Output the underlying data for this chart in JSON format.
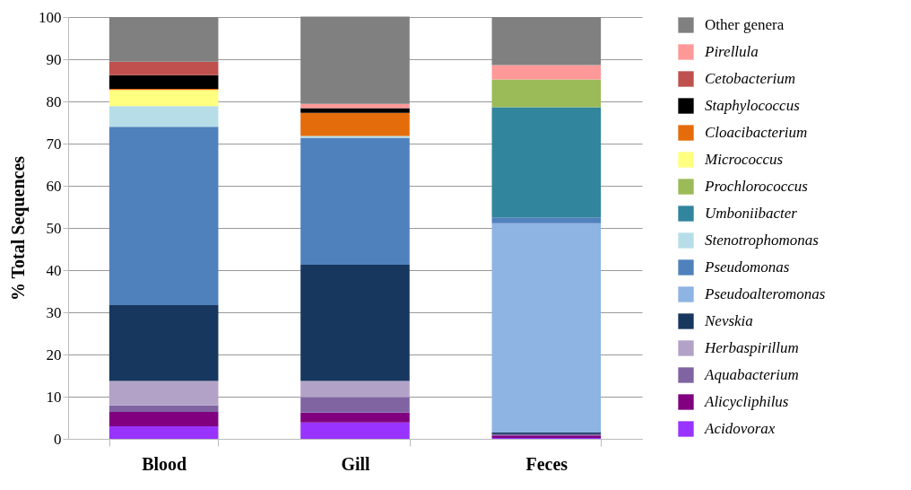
{
  "chart_data": {
    "type": "bar",
    "stacked": true,
    "ylabel": "% Total Sequences",
    "categories": [
      "Blood",
      "Gill",
      "Feces"
    ],
    "ylim": [
      0,
      100
    ],
    "yticks": [
      0,
      10,
      20,
      30,
      40,
      50,
      60,
      70,
      80,
      90,
      100
    ],
    "grid": "y",
    "legend": "right",
    "series": [
      {
        "name": "Acidovorax",
        "color": "#9933ff",
        "values": [
          3.0,
          3.9,
          0.2
        ]
      },
      {
        "name": "Alicycliphilus",
        "color": "#800080",
        "values": [
          3.4,
          2.3,
          0.6
        ]
      },
      {
        "name": "Aquabacterium",
        "color": "#8064a2",
        "values": [
          1.5,
          3.7,
          0.3
        ]
      },
      {
        "name": "Herbaspirillum",
        "color": "#b3a2c7",
        "values": [
          5.8,
          3.8,
          0
        ]
      },
      {
        "name": "Nevskia",
        "color": "#17375e",
        "values": [
          18.0,
          27.6,
          0.4
        ]
      },
      {
        "name": "Pseudoalteromonas",
        "color": "#8eb4e3",
        "values": [
          0,
          0,
          49.6
        ]
      },
      {
        "name": "Pseudomonas",
        "color": "#4f81bd",
        "values": [
          42.3,
          30.1,
          1.4
        ]
      },
      {
        "name": "Stenotrophomonas",
        "color": "#b7dee8",
        "values": [
          4.9,
          0.4,
          0
        ]
      },
      {
        "name": "Umboniibacter",
        "color": "#31859c",
        "values": [
          0,
          0,
          26.1
        ]
      },
      {
        "name": "Prochlorococcus",
        "color": "#9bbb59",
        "values": [
          0,
          0,
          6.6
        ]
      },
      {
        "name": "Micrococcus",
        "color": "#ffff80",
        "values": [
          3.8,
          0,
          0
        ]
      },
      {
        "name": "Cloacibacterium",
        "color": "#e46c0a",
        "values": [
          0.3,
          5.5,
          0
        ]
      },
      {
        "name": "Staphylococcus",
        "color": "#000000",
        "values": [
          3.2,
          1.1,
          0
        ]
      },
      {
        "name": "Cetobacterium",
        "color": "#c0504d",
        "values": [
          3.2,
          0,
          0
        ]
      },
      {
        "name": "Pirellula",
        "color": "#ff9999",
        "values": [
          0,
          1.0,
          3.4
        ]
      },
      {
        "name": "Other genera",
        "color": "#808080",
        "values": [
          10.6,
          20.7,
          11.4
        ]
      }
    ]
  }
}
